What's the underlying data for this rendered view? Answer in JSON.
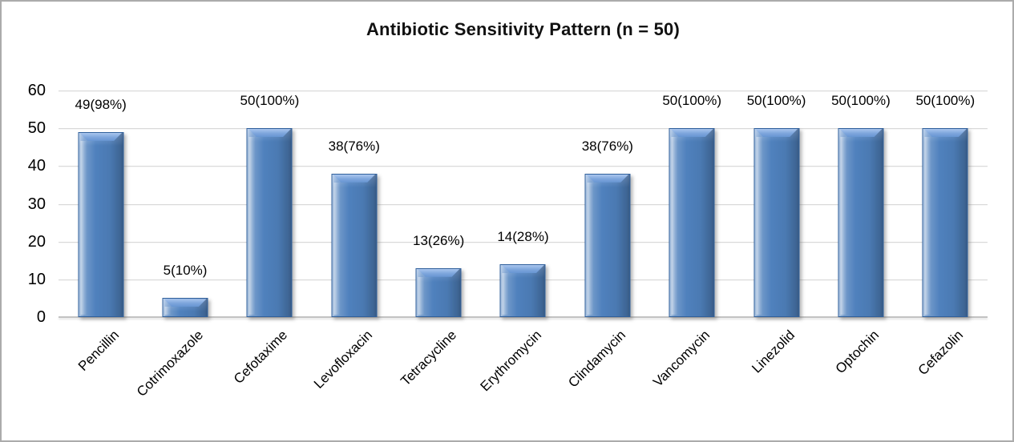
{
  "chart": {
    "title": "Antibiotic Sensitivity Pattern (n = 50)"
  },
  "chart_data": {
    "type": "bar",
    "title": "Antibiotic Sensitivity Pattern (n = 50)",
    "categories": [
      "Pencillin",
      "Cotrimoxazole",
      "Cefotaxime",
      "Levofloxacin",
      "Tetracycline",
      "Erythromycin",
      "Clindamycin",
      "Vancomycin",
      "Linezolid",
      "Optochin",
      "Cefazolin"
    ],
    "values": [
      49,
      5,
      50,
      38,
      13,
      14,
      38,
      50,
      50,
      50,
      50
    ],
    "data_labels": [
      "49(98%)",
      "5(10%)",
      "50(100%)",
      "38(76%)",
      "13(26%)",
      "14(28%)",
      "38(76%)",
      "50(100%)",
      "50(100%)",
      "50(100%)",
      "50(100%)"
    ],
    "xlabel": "",
    "ylabel": "",
    "ylim": [
      0,
      60
    ],
    "yticks": [
      0,
      10,
      20,
      30,
      40,
      50,
      60
    ],
    "grid": "horizontal",
    "legend": "none",
    "x_tick_rotation_deg": 45,
    "colors": {
      "bar_fill": "#4f81bd",
      "bar_light": "#7ba3d8",
      "bar_edge": "#30609c",
      "gridline": "#d9d9d9",
      "axis_line": "#c3c3c3",
      "text": "#000000",
      "frame_border": "#ababab",
      "background": "#ffffff"
    }
  }
}
